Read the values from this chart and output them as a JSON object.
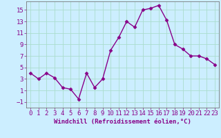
{
  "x": [
    0,
    1,
    2,
    3,
    4,
    5,
    6,
    7,
    8,
    9,
    10,
    11,
    12,
    13,
    14,
    15,
    16,
    17,
    18,
    19,
    20,
    21,
    22,
    23
  ],
  "y": [
    4.0,
    3.0,
    4.0,
    3.2,
    1.5,
    1.2,
    -0.5,
    4.0,
    1.5,
    3.0,
    8.0,
    10.2,
    13.0,
    12.0,
    15.0,
    15.3,
    15.8,
    13.2,
    9.0,
    8.2,
    7.0,
    7.0,
    6.5,
    5.5
  ],
  "line_color": "#880088",
  "marker": "D",
  "markersize": 2.5,
  "linewidth": 1.0,
  "bg_color": "#cceeff",
  "grid_color": "#aaddcc",
  "xlabel": "Windchill (Refroidissement éolien,°C)",
  "xlim": [
    -0.5,
    23.5
  ],
  "ylim": [
    -2,
    16.5
  ],
  "yticks": [
    -1,
    1,
    3,
    5,
    7,
    9,
    11,
    13,
    15
  ],
  "xticks": [
    0,
    1,
    2,
    3,
    4,
    5,
    6,
    7,
    8,
    9,
    10,
    11,
    12,
    13,
    14,
    15,
    16,
    17,
    18,
    19,
    20,
    21,
    22,
    23
  ],
  "xlabel_fontsize": 6.5,
  "tick_fontsize": 6.5,
  "label_color": "#880088"
}
